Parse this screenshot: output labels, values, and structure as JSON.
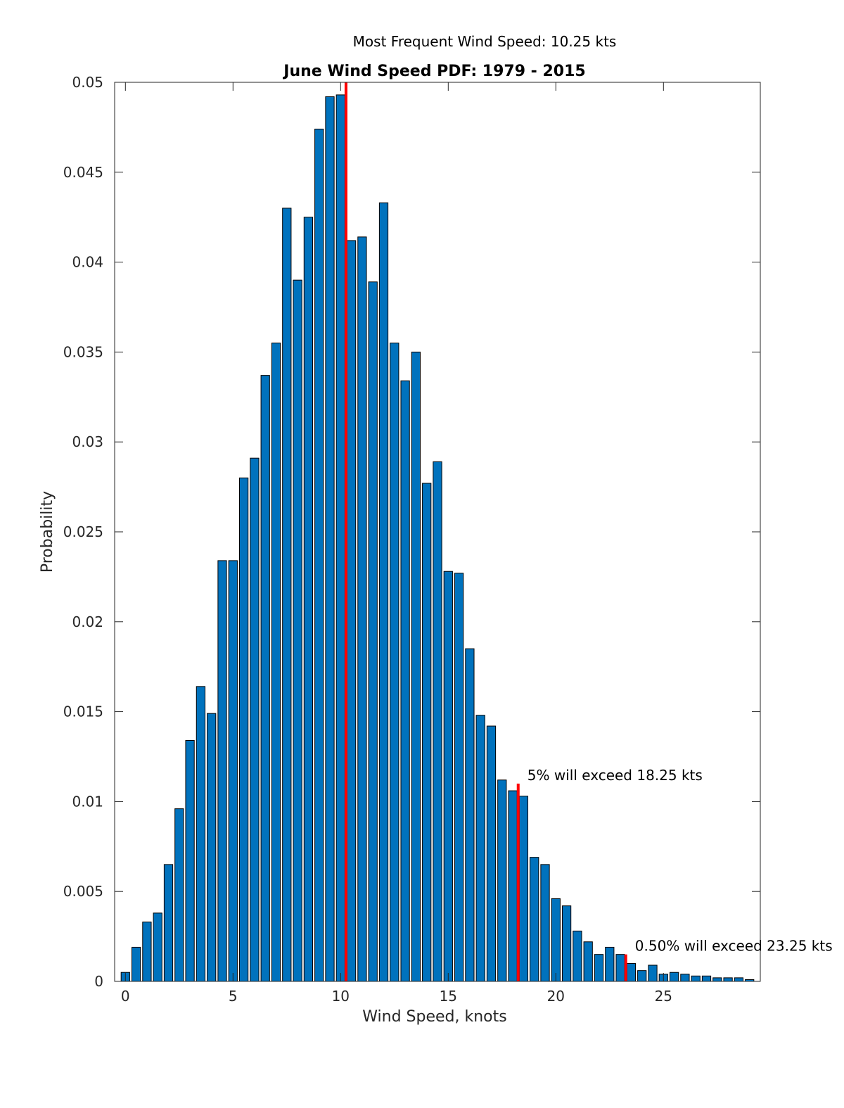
{
  "chart_data": {
    "type": "bar",
    "title": "June Wind Speed PDF: 1979 - 2015",
    "subtitle": "Most Frequent Wind Speed: 10.25 kts",
    "xlabel": "Wind Speed, knots",
    "ylabel": "Probability",
    "xlim": [
      -0.5,
      29.5
    ],
    "ylim": [
      0,
      0.05
    ],
    "xticks": [
      0,
      5,
      10,
      15,
      20,
      25
    ],
    "yticks": [
      0,
      0.005,
      0.01,
      0.015,
      0.02,
      0.025,
      0.03,
      0.035,
      0.04,
      0.045,
      0.05
    ],
    "ytick_labels": [
      "0",
      "0.005",
      "0.01",
      "0.015",
      "0.02",
      "0.025",
      "0.03",
      "0.035",
      "0.04",
      "0.045",
      "0.05"
    ],
    "bar_width": 0.4,
    "x": [
      0,
      0.5,
      1,
      1.5,
      2,
      2.5,
      3,
      3.5,
      4,
      4.5,
      5,
      5.5,
      6,
      6.5,
      7,
      7.5,
      8,
      8.5,
      9,
      9.5,
      10,
      10.5,
      11,
      11.5,
      12,
      12.5,
      13,
      13.5,
      14,
      14.5,
      15,
      15.5,
      16,
      16.5,
      17,
      17.5,
      18,
      18.5,
      19,
      19.5,
      20,
      20.5,
      21,
      21.5,
      22,
      22.5,
      23,
      23.5,
      24,
      24.5,
      25,
      25.5,
      26,
      26.5,
      27,
      27.5,
      28,
      28.5,
      29
    ],
    "values": [
      0.0005,
      0.0019,
      0.0033,
      0.0038,
      0.0065,
      0.0096,
      0.0134,
      0.0164,
      0.0149,
      0.0234,
      0.0234,
      0.028,
      0.0291,
      0.0337,
      0.0355,
      0.043,
      0.039,
      0.0425,
      0.0474,
      0.0492,
      0.0493,
      0.0412,
      0.0414,
      0.0389,
      0.0433,
      0.0355,
      0.0334,
      0.035,
      0.0277,
      0.0289,
      0.0228,
      0.0227,
      0.0185,
      0.0148,
      0.0142,
      0.0112,
      0.0106,
      0.0103,
      0.0069,
      0.0065,
      0.0046,
      0.0042,
      0.0028,
      0.0022,
      0.0015,
      0.0019,
      0.0015,
      0.001,
      0.0006,
      0.0009,
      0.0004,
      0.0005,
      0.0004,
      0.0003,
      0.0003,
      0.0002,
      0.0002,
      0.0002,
      0.0001
    ],
    "bar_color": "#0072BD",
    "marker_color": "#FF0000",
    "markers": [
      {
        "x": 10.25,
        "y": 0.05,
        "label": ""
      },
      {
        "x": 18.25,
        "y": 0.011,
        "label": "5% will exceed 18.25 kts"
      },
      {
        "x": 23.25,
        "y": 0.0015,
        "label": "0.50% will exceed 23.25 kts"
      }
    ],
    "grid": false
  }
}
